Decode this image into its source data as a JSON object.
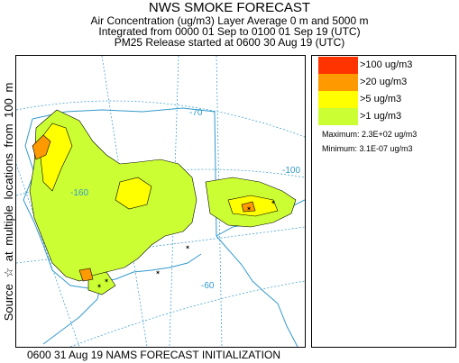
{
  "header": {
    "title": "NWS SMOKE FORECAST",
    "line2": "Air Concentration (ug/m3) Layer Average    0 m and  5000 m",
    "line3": "Integrated from 0000 01 Sep to 0100 01 Sep 19 (UTC)",
    "line4": "PM25 Release started at 0600 30 Aug 19 (UTC)"
  },
  "side_label": "Source ☆ at multiple locations from 100 m",
  "legend": {
    "items": [
      {
        "label": ">100 ug/m3",
        "color": "#ff3300"
      },
      {
        "label": ">20 ug/m3",
        "color": "#ff9900"
      },
      {
        "label": ">5 ug/m3",
        "color": "#ffff00"
      },
      {
        "label": ">1 ug/m3",
        "color": "#ccff33"
      }
    ],
    "maximum": "Maximum: 2.3E+02 ug/m3",
    "minimum": "Minimum: 3.1E-07 ug/m3"
  },
  "map": {
    "graticule_labels": [
      "-70",
      "-160",
      "-100",
      "-60"
    ],
    "colors": {
      "ocean": "#ffffff",
      "coastline": "#3399cc",
      "graticule": "#3399cc",
      "contour_line": "#000000",
      "source_marker": "#000000"
    }
  },
  "footer": "0600 31 Aug 19 NAMS FORECAST INITIALIZATION"
}
